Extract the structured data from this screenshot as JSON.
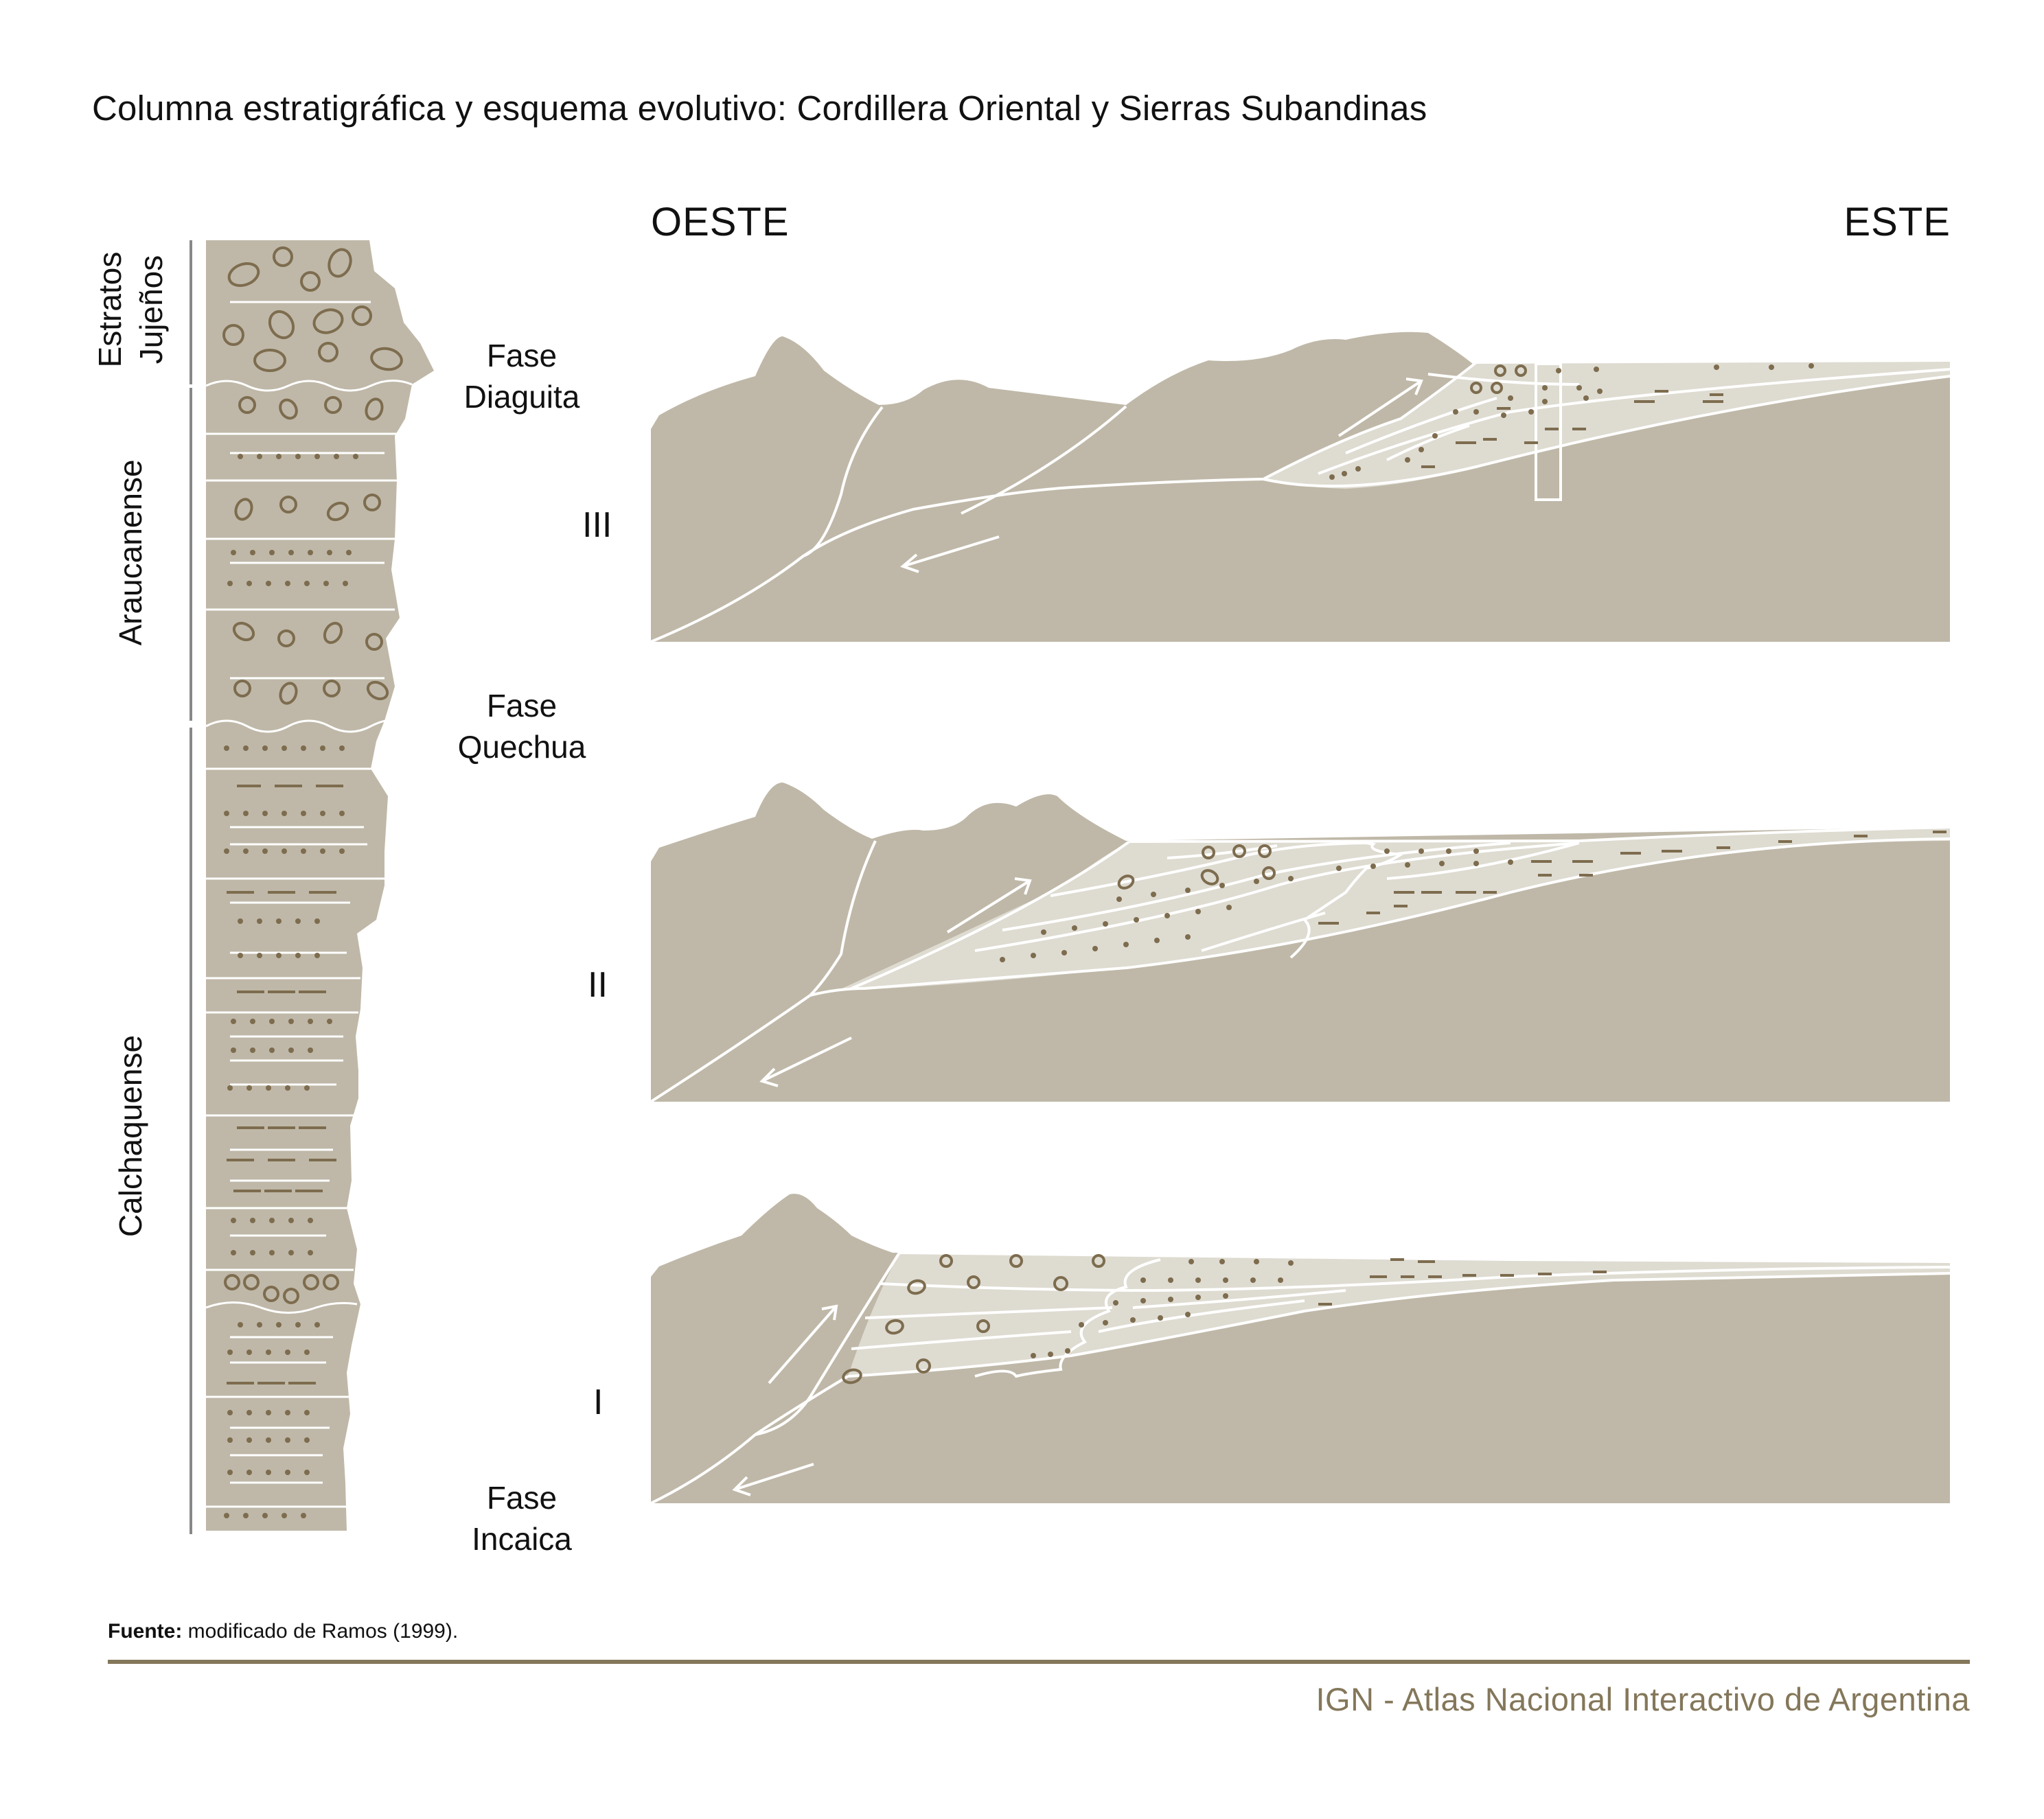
{
  "title": "Columna estratigráfica y esquema evolutivo: Cordillera Oriental y Sierras Subandinas",
  "directions": {
    "west": "OESTE",
    "east": "ESTE"
  },
  "phases": {
    "diaguita": {
      "line1": "Fase",
      "line2": "Diaguita"
    },
    "quechua": {
      "line1": "Fase",
      "line2": "Quechua"
    },
    "incaica": {
      "line1": "Fase",
      "line2": "Incaica"
    }
  },
  "stages": {
    "iii": "III",
    "ii": "II",
    "i": "I"
  },
  "units": {
    "estratos_line1": "Estratos",
    "estratos_line2": "Jujeños",
    "araucanense": "Araucanense",
    "calchaquense": "Calchaquense"
  },
  "source": {
    "label": "Fuente:",
    "text": " modificado de Ramos (1999)."
  },
  "credit": "IGN - Atlas Nacional Interactivo de Argentina",
  "colors": {
    "rock": "#bfb8a8",
    "sediment": "#dedbd1",
    "symbol": "#7d6c4e",
    "footer_rule": "#84775a",
    "credit": "#84775a",
    "line": "#ffffff"
  }
}
